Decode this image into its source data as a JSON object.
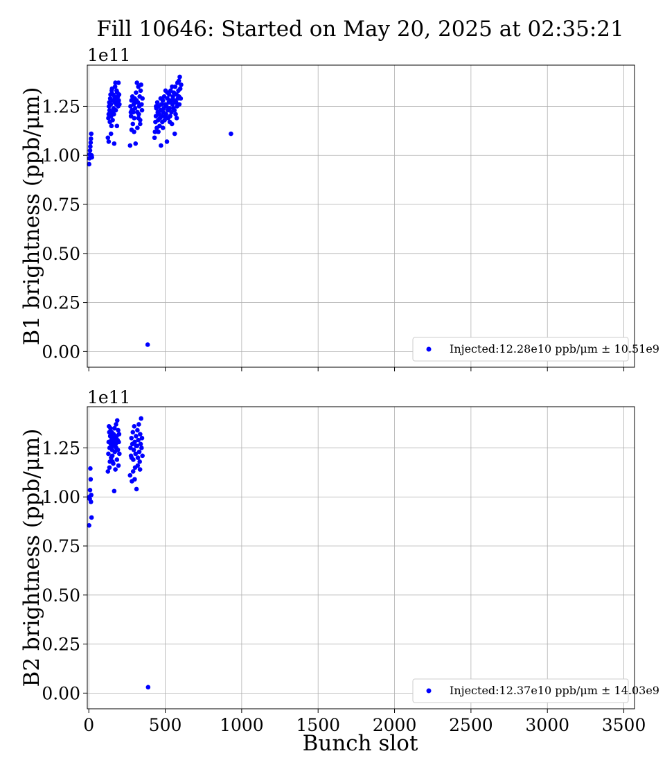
{
  "title": "Fill 10646: Started on May 20, 2025 at 02:35:21",
  "xlabel": "Bunch slot",
  "colors": {
    "points": "#0000ff",
    "grid": "#b0b0b0",
    "legend_border": "#cccccc"
  },
  "chart_data": [
    {
      "type": "scatter",
      "ylabel": "B1 brightness (ppb/μm)",
      "y_offset_label": "1e11",
      "xlim": [
        -10,
        3570
      ],
      "ylim": [
        -0.08,
        1.46
      ],
      "y_multiplier": 100000000000.0,
      "x_ticks": [
        "0",
        "500",
        "1000",
        "1500",
        "2000",
        "2500",
        "3000",
        "3500"
      ],
      "x_tick_labels_visible": false,
      "y_ticks": [
        "0.00",
        "0.25",
        "0.50",
        "0.75",
        "1.00",
        "1.25"
      ],
      "grid": true,
      "legend": {
        "placement": "lower-right",
        "text": "Injected:12.28e10 ppb/μm ± 10.51e9"
      },
      "series": [
        {
          "marker": "circle",
          "color": "#0000ff",
          "points": [
            [
              2,
              0.955
            ],
            [
              4,
              0.985
            ],
            [
              6,
              1.005
            ],
            [
              8,
              1.025
            ],
            [
              10,
              1.045
            ],
            [
              12,
              1.065
            ],
            [
              14,
              1.085
            ],
            [
              16,
              1.11
            ],
            [
              18,
              1.0
            ],
            [
              20,
              0.99
            ],
            [
              125,
              1.09
            ],
            [
              128,
              1.19
            ],
            [
              130,
              1.21
            ],
            [
              132,
              1.25
            ],
            [
              134,
              1.27
            ],
            [
              136,
              1.23
            ],
            [
              138,
              1.17
            ],
            [
              140,
              1.29
            ],
            [
              142,
              1.31
            ],
            [
              144,
              1.26
            ],
            [
              146,
              1.2
            ],
            [
              148,
              1.15
            ],
            [
              150,
              1.33
            ],
            [
              152,
              1.34
            ],
            [
              154,
              1.22
            ],
            [
              156,
              1.18
            ],
            [
              158,
              1.28
            ],
            [
              160,
              1.31
            ],
            [
              162,
              1.24
            ],
            [
              164,
              1.21
            ],
            [
              166,
              1.06
            ],
            [
              168,
              1.3
            ],
            [
              170,
              1.27
            ],
            [
              172,
              1.35
            ],
            [
              174,
              1.37
            ],
            [
              176,
              1.23
            ],
            [
              178,
              1.29
            ],
            [
              180,
              1.26
            ],
            [
              182,
              1.33
            ],
            [
              184,
              1.15
            ],
            [
              186,
              1.32
            ],
            [
              188,
              1.27
            ],
            [
              190,
              1.3
            ],
            [
              192,
              1.25
            ],
            [
              194,
              1.37
            ],
            [
              196,
              1.28
            ],
            [
              198,
              1.31
            ],
            [
              200,
              1.26
            ],
            [
              130,
              1.07
            ],
            [
              145,
              1.11
            ],
            [
              270,
              1.05
            ],
            [
              273,
              1.25
            ],
            [
              276,
              1.2
            ],
            [
              279,
              1.28
            ],
            [
              282,
              1.23
            ],
            [
              285,
              1.3
            ],
            [
              288,
              1.16
            ],
            [
              291,
              1.22
            ],
            [
              294,
              1.26
            ],
            [
              297,
              1.19
            ],
            [
              300,
              1.29
            ],
            [
              303,
              1.24
            ],
            [
              306,
              1.06
            ],
            [
              309,
              1.32
            ],
            [
              312,
              1.28
            ],
            [
              315,
              1.37
            ],
            [
              318,
              1.22
            ],
            [
              321,
              1.27
            ],
            [
              324,
              1.35
            ],
            [
              327,
              1.21
            ],
            [
              330,
              1.25
            ],
            [
              333,
              1.3
            ],
            [
              336,
              1.18
            ],
            [
              339,
              1.33
            ],
            [
              342,
              1.36
            ],
            [
              345,
              1.26
            ],
            [
              348,
              1.23
            ],
            [
              351,
              1.29
            ],
            [
              280,
              1.13
            ],
            [
              296,
              1.12
            ],
            [
              318,
              1.14
            ],
            [
              336,
              1.16
            ],
            [
              275,
              1.22
            ],
            [
              302,
              1.27
            ],
            [
              325,
              1.19
            ],
            [
              385,
              0.035
            ],
            [
              430,
              1.09
            ],
            [
              433,
              1.12
            ],
            [
              436,
              1.17
            ],
            [
              439,
              1.2
            ],
            [
              442,
              1.24
            ],
            [
              445,
              1.14
            ],
            [
              448,
              1.27
            ],
            [
              451,
              1.22
            ],
            [
              454,
              1.18
            ],
            [
              457,
              1.25
            ],
            [
              460,
              1.21
            ],
            [
              463,
              1.15
            ],
            [
              466,
              1.19
            ],
            [
              469,
              1.23
            ],
            [
              472,
              1.05
            ],
            [
              475,
              1.26
            ],
            [
              478,
              1.2
            ],
            [
              481,
              1.17
            ],
            [
              484,
              1.28
            ],
            [
              487,
              1.22
            ],
            [
              490,
              1.24
            ],
            [
              493,
              1.3
            ],
            [
              496,
              1.18
            ],
            [
              499,
              1.26
            ],
            [
              502,
              1.33
            ],
            [
              505,
              1.21
            ],
            [
              508,
              1.25
            ],
            [
              511,
              1.07
            ],
            [
              514,
              1.29
            ],
            [
              517,
              1.23
            ],
            [
              520,
              1.19
            ],
            [
              523,
              1.27
            ],
            [
              526,
              1.31
            ],
            [
              529,
              1.24
            ],
            [
              532,
              1.2
            ],
            [
              535,
              1.33
            ],
            [
              538,
              1.28
            ],
            [
              541,
              1.22
            ],
            [
              544,
              1.16
            ],
            [
              547,
              1.26
            ],
            [
              550,
              1.3
            ],
            [
              553,
              1.24
            ],
            [
              556,
              1.32
            ],
            [
              559,
              1.28
            ],
            [
              562,
              1.11
            ],
            [
              565,
              1.35
            ],
            [
              568,
              1.21
            ],
            [
              571,
              1.27
            ],
            [
              574,
              1.31
            ],
            [
              577,
              1.25
            ],
            [
              580,
              1.37
            ],
            [
              583,
              1.29
            ],
            [
              586,
              1.33
            ],
            [
              589,
              1.38
            ],
            [
              592,
              1.26
            ],
            [
              595,
              1.4
            ],
            [
              598,
              1.34
            ],
            [
              601,
              1.29
            ],
            [
              604,
              1.36
            ],
            [
              440,
              1.25
            ],
            [
              455,
              1.12
            ],
            [
              470,
              1.29
            ],
            [
              485,
              1.14
            ],
            [
              500,
              1.2
            ],
            [
              515,
              1.32
            ],
            [
              530,
              1.17
            ],
            [
              545,
              1.35
            ],
            [
              560,
              1.23
            ],
            [
              575,
              1.19
            ],
            [
              590,
              1.3
            ],
            [
              930,
              1.11
            ]
          ]
        }
      ]
    },
    {
      "type": "scatter",
      "ylabel": "B2 brightness (ppb/μm)",
      "y_offset_label": "1e11",
      "xlim": [
        -10,
        3570
      ],
      "ylim": [
        -0.08,
        1.46
      ],
      "y_multiplier": 100000000000.0,
      "x_ticks": [
        "0",
        "500",
        "1000",
        "1500",
        "2000",
        "2500",
        "3000",
        "3500"
      ],
      "x_tick_labels_visible": true,
      "y_ticks": [
        "0.00",
        "0.25",
        "0.50",
        "0.75",
        "1.00",
        "1.25"
      ],
      "grid": true,
      "legend": {
        "placement": "lower-right",
        "text": "Injected:12.37e10 ppb/μm ± 14.03e9"
      },
      "series": [
        {
          "marker": "circle",
          "color": "#0000ff",
          "points": [
            [
              2,
              0.855
            ],
            [
              4,
              1.0
            ],
            [
              6,
              0.99
            ],
            [
              8,
              1.035
            ],
            [
              10,
              1.145
            ],
            [
              12,
              1.09
            ],
            [
              14,
              0.975
            ],
            [
              16,
              1.01
            ],
            [
              18,
              0.895
            ],
            [
              125,
              1.13
            ],
            [
              128,
              1.22
            ],
            [
              130,
              1.28
            ],
            [
              132,
              1.36
            ],
            [
              134,
              1.33
            ],
            [
              136,
              1.25
            ],
            [
              138,
              1.18
            ],
            [
              140,
              1.31
            ],
            [
              142,
              1.35
            ],
            [
              144,
              1.27
            ],
            [
              146,
              1.2
            ],
            [
              148,
              1.29
            ],
            [
              150,
              1.33
            ],
            [
              152,
              1.24
            ],
            [
              154,
              1.21
            ],
            [
              156,
              1.3
            ],
            [
              158,
              1.26
            ],
            [
              160,
              1.17
            ],
            [
              162,
              1.32
            ],
            [
              164,
              1.28
            ],
            [
              166,
              1.03
            ],
            [
              168,
              1.35
            ],
            [
              170,
              1.23
            ],
            [
              172,
              1.3
            ],
            [
              174,
              1.14
            ],
            [
              176,
              1.27
            ],
            [
              178,
              1.37
            ],
            [
              180,
              1.25
            ],
            [
              182,
              1.31
            ],
            [
              184,
              1.19
            ],
            [
              186,
              1.39
            ],
            [
              188,
              1.29
            ],
            [
              190,
              1.24
            ],
            [
              192,
              1.34
            ],
            [
              194,
              1.16
            ],
            [
              196,
              1.28
            ],
            [
              198,
              1.32
            ],
            [
              200,
              1.22
            ],
            [
              135,
              1.15
            ],
            [
              155,
              1.18
            ],
            [
              270,
              1.11
            ],
            [
              273,
              1.25
            ],
            [
              276,
              1.21
            ],
            [
              279,
              1.3
            ],
            [
              282,
              1.08
            ],
            [
              285,
              1.27
            ],
            [
              288,
              1.33
            ],
            [
              291,
              1.19
            ],
            [
              294,
              1.24
            ],
            [
              297,
              1.36
            ],
            [
              300,
              1.28
            ],
            [
              303,
              1.15
            ],
            [
              306,
              1.22
            ],
            [
              309,
              1.31
            ],
            [
              312,
              1.04
            ],
            [
              315,
              1.26
            ],
            [
              318,
              1.34
            ],
            [
              321,
              1.2
            ],
            [
              324,
              1.29
            ],
            [
              327,
              1.37
            ],
            [
              330,
              1.23
            ],
            [
              333,
              1.18
            ],
            [
              336,
              1.32
            ],
            [
              339,
              1.27
            ],
            [
              342,
              1.4
            ],
            [
              345,
              1.25
            ],
            [
              348,
              1.3
            ],
            [
              351,
              1.21
            ],
            [
              290,
              1.13
            ],
            [
              300,
              1.09
            ],
            [
              320,
              1.16
            ],
            [
              335,
              1.14
            ],
            [
              280,
              1.2
            ],
            [
              310,
              1.26
            ],
            [
              388,
              0.03
            ]
          ]
        }
      ]
    }
  ]
}
